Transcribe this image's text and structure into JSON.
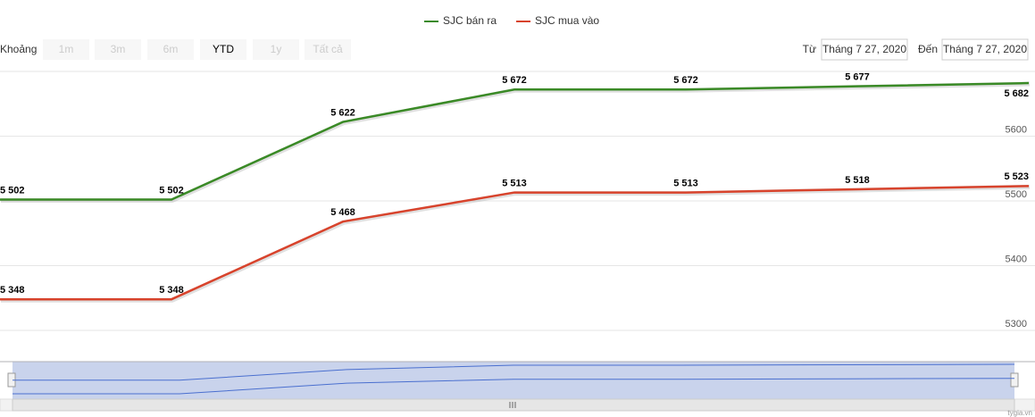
{
  "chart_data": {
    "type": "line",
    "categories": [
      null,
      null,
      null,
      null,
      null,
      null,
      null
    ],
    "series": [
      {
        "name": "SJC bán ra",
        "color": "#3a8a26",
        "values": [
          5502,
          5502,
          5622,
          5672,
          5672,
          5677,
          5682
        ],
        "value_labels": [
          "5 502",
          "5 502",
          "5 622",
          "5 672",
          "5 672",
          "5 677",
          "5 682"
        ]
      },
      {
        "name": "SJC mua vào",
        "color": "#d8432c",
        "values": [
          5348,
          5348,
          5468,
          5513,
          5513,
          5518,
          5523
        ],
        "value_labels": [
          "5 348",
          "5 348",
          "5 468",
          "5 513",
          "5 513",
          "5 518",
          "5 523"
        ]
      }
    ],
    "ylim": [
      5300,
      5700
    ],
    "yticks": [
      5300,
      5400,
      5500,
      5600
    ],
    "grid": true,
    "legend": "top"
  },
  "range_selector": {
    "label": "Khoảng",
    "buttons": [
      "1m",
      "3m",
      "6m",
      "YTD",
      "1y",
      "Tất cả"
    ],
    "selected": 3
  },
  "date_range": {
    "from_label": "Từ",
    "from": "Tháng 7 27, 2020",
    "to_label": "Đến",
    "to": "Tháng 7 27, 2020"
  },
  "credit": "tygia.vn"
}
